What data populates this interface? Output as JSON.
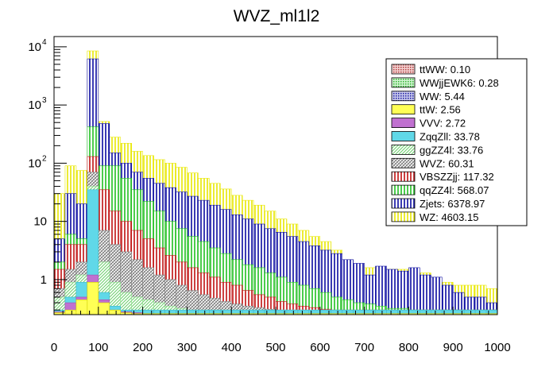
{
  "chart_data": {
    "type": "bar",
    "stacked": true,
    "title": "WVZ_ml1l2",
    "xlabel": "",
    "ylabel": "",
    "xlim": [
      0,
      1000
    ],
    "ylim": [
      0.25,
      15000
    ],
    "yscale": "log",
    "bin_width": 25,
    "x_ticks": [
      "0",
      "100",
      "200",
      "300",
      "400",
      "500",
      "600",
      "700",
      "800",
      "900",
      "1000"
    ],
    "y_ticks": [
      {
        "value": 1,
        "label": "1"
      },
      {
        "value": 10,
        "label": "10"
      },
      {
        "value": 100,
        "label": "10",
        "exp": "2"
      },
      {
        "value": 1000,
        "label": "10",
        "exp": "3"
      },
      {
        "value": 10000,
        "label": "10",
        "exp": "4"
      }
    ],
    "legend_position": "top-right",
    "legend": [
      {
        "label": "ttWW: 0.10",
        "color": "#c06060",
        "pattern": "dots"
      },
      {
        "label": "WWjjEWK6: 0.28",
        "color": "#50d050",
        "pattern": "dots"
      },
      {
        "label": "WW: 5.44",
        "color": "#1a1aa0",
        "pattern": "dots"
      },
      {
        "label": "ttW: 2.56",
        "color": "#ffff55",
        "pattern": "solid"
      },
      {
        "label": "VVV: 2.72",
        "color": "#c070d0",
        "pattern": "solid"
      },
      {
        "label": "ZqqZll: 33.78",
        "color": "#60d8e8",
        "pattern": "solid"
      },
      {
        "label": "ggZZ4l: 33.76",
        "color": "#90e090",
        "pattern": "hatch"
      },
      {
        "label": "WVZ: 60.31",
        "color": "#808080",
        "pattern": "hatch"
      },
      {
        "label": "VBSZZjj: 117.32",
        "color": "#c01010",
        "pattern": "vlines"
      },
      {
        "label": "qqZZ4l: 568.07",
        "color": "#20c020",
        "pattern": "vlines"
      },
      {
        "label": "Zjets: 6378.97",
        "color": "#0a0aa0",
        "pattern": "vlines"
      },
      {
        "label": "WZ: 4603.15",
        "color": "#e8e800",
        "pattern": "vlines"
      }
    ],
    "stack_tops": [
      {
        "name": "WZ",
        "values": [
          30,
          90,
          75,
          8500,
          520,
          280,
          220,
          160,
          135,
          115,
          100,
          85,
          68,
          55,
          45,
          36,
          28,
          23,
          19,
          15,
          11,
          9,
          7,
          5.5,
          4.5,
          3.2,
          2.2,
          1.8,
          1.6,
          1.5,
          1.5,
          1.5,
          1.3,
          1.3,
          0.9,
          0.9,
          0.8,
          0.8,
          0.8,
          0.7
        ]
      },
      {
        "name": "Zjets",
        "values": [
          5,
          30,
          20,
          6200,
          480,
          150,
          100,
          70,
          55,
          45,
          38,
          32,
          27,
          23,
          19,
          16,
          13,
          11,
          9,
          7.5,
          6.5,
          5.5,
          4.5,
          3.8,
          3.2,
          2.8,
          2.2,
          1.9,
          1.2,
          1.7,
          1.5,
          1.4,
          1.6,
          1.2,
          1.1,
          0.8,
          0.6,
          0.5,
          0.5,
          0.4
        ]
      },
      {
        "name": "qqZZ4l",
        "values": [
          2,
          6,
          5,
          420,
          90,
          90,
          55,
          35,
          22,
          15,
          10,
          7.5,
          5.5,
          4.5,
          3.5,
          2.8,
          2.2,
          1.8,
          1.6,
          1.3,
          1.1,
          0.9,
          0.8,
          0.7,
          0.6,
          0.5,
          0.45,
          0.4,
          0.38,
          0.35,
          0.32,
          0.32,
          0.3,
          0.3,
          0.3,
          0.3,
          0.3,
          0.3,
          0.3,
          0.3
        ]
      },
      {
        "name": "VBSZZjj",
        "values": [
          1.5,
          4,
          4,
          130,
          35,
          15,
          10,
          7,
          5,
          3.5,
          2.6,
          2,
          1.6,
          1.3,
          1.1,
          0.9,
          0.8,
          0.65,
          0.55,
          0.5,
          0.42,
          0.38,
          0.35,
          0.33,
          0.31,
          0.3,
          0.3,
          0.3,
          0.3,
          0.3,
          0.3,
          0.3,
          0.3,
          0.3,
          0.3,
          0.3,
          0.3,
          0.3,
          0.3,
          0.3
        ]
      },
      {
        "name": "WVZ",
        "values": [
          0.7,
          1.5,
          2,
          70,
          7,
          4,
          3,
          2.2,
          1.6,
          1.2,
          1,
          0.8,
          0.65,
          0.55,
          0.48,
          0.42,
          0.38,
          0.35,
          0.33,
          0.31,
          0.3,
          0.3,
          0.3,
          0.3,
          0.3,
          0.3,
          0.3,
          0.3,
          0.3,
          0.3,
          0.3,
          0.3,
          0.3,
          0.3,
          0.3,
          0.3,
          0.3,
          0.3,
          0.3,
          0.3
        ]
      },
      {
        "name": "ggZZ4l",
        "values": [
          0.5,
          0.9,
          1.2,
          40,
          2,
          0.9,
          0.6,
          0.5,
          0.45,
          0.4,
          0.35,
          0.32,
          0.3,
          0.3,
          0.3,
          0.3,
          0.3,
          0.3,
          0.3,
          0.3,
          0.3,
          0.3,
          0.3,
          0.3,
          0.3,
          0.3,
          0.3,
          0.3,
          0.3,
          0.3,
          0.3,
          0.3,
          0.3,
          0.3,
          0.3,
          0.3,
          0.3,
          0.3,
          0.3,
          0.3
        ]
      },
      {
        "name": "ZqqZll",
        "values": [
          0.3,
          0.5,
          0.9,
          35,
          0.6,
          0.35,
          0.3,
          0.3,
          0.3,
          0.3,
          0.3,
          0.3,
          0.3,
          0.3,
          0.3,
          0.3,
          0.3,
          0.3,
          0.3,
          0.3,
          0.3,
          0.3,
          0.3,
          0.3,
          0.3,
          0.3,
          0.3,
          0.3,
          0.3,
          0.3,
          0.3,
          0.3,
          0.3,
          0.3,
          0.3,
          0.3,
          0.3,
          0.3,
          0.3,
          0.3
        ]
      },
      {
        "name": "VVV",
        "values": [
          0.28,
          0.4,
          0.5,
          1.2,
          0.45,
          0.3,
          0.28,
          0.27,
          0.26,
          0.26,
          0.26,
          0.26,
          0.26,
          0.26,
          0.26,
          0.26,
          0.26,
          0.26,
          0.26,
          0.26,
          0.26,
          0.26,
          0.26,
          0.26,
          0.26,
          0.26,
          0.26,
          0.26,
          0.26,
          0.26,
          0.26,
          0.26,
          0.26,
          0.26,
          0.26,
          0.26,
          0.26,
          0.26,
          0.26,
          0.26
        ]
      },
      {
        "name": "ttW",
        "values": [
          0.27,
          0.3,
          0.45,
          0.9,
          0.4,
          0.3,
          0.27,
          0.26,
          0.26,
          0.26,
          0.26,
          0.26,
          0.26,
          0.26,
          0.26,
          0.26,
          0.26,
          0.26,
          0.26,
          0.26,
          0.26,
          0.26,
          0.26,
          0.26,
          0.26,
          0.26,
          0.26,
          0.26,
          0.26,
          0.26,
          0.26,
          0.26,
          0.26,
          0.26,
          0.26,
          0.26,
          0.26,
          0.26,
          0.26,
          0.26
        ]
      }
    ]
  }
}
